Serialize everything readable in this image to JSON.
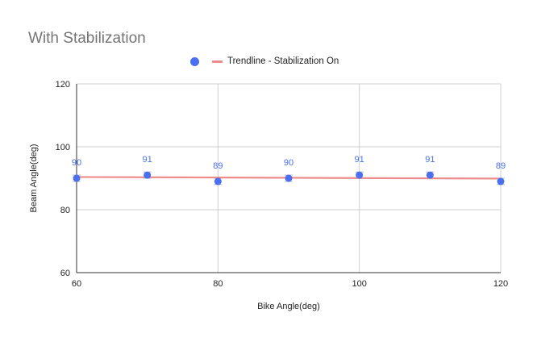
{
  "chart_data": {
    "type": "scatter",
    "title": "With Stabilization",
    "xlabel": "Bike Angle(deg)",
    "ylabel": "Beam Angle(deg)",
    "xlim": [
      60,
      120
    ],
    "ylim": [
      60,
      120
    ],
    "x_ticks": [
      60,
      80,
      100,
      120
    ],
    "y_ticks": [
      60,
      80,
      100,
      120
    ],
    "grid": true,
    "legend_position": "top",
    "series": [
      {
        "name": "",
        "color": "#4a6ff0",
        "x": [
          60,
          70,
          80,
          90,
          100,
          110,
          120
        ],
        "y": [
          90,
          91,
          89,
          90,
          91,
          91,
          89
        ],
        "data_labels": [
          "90",
          "91",
          "89",
          "90",
          "91",
          "91",
          "89"
        ],
        "error_bar": 1
      }
    ],
    "trendline": {
      "name": "Trendline - Stabilization On",
      "color": "#ee8b8b",
      "start": [
        60,
        90.4
      ],
      "end": [
        120,
        89.9
      ]
    }
  }
}
